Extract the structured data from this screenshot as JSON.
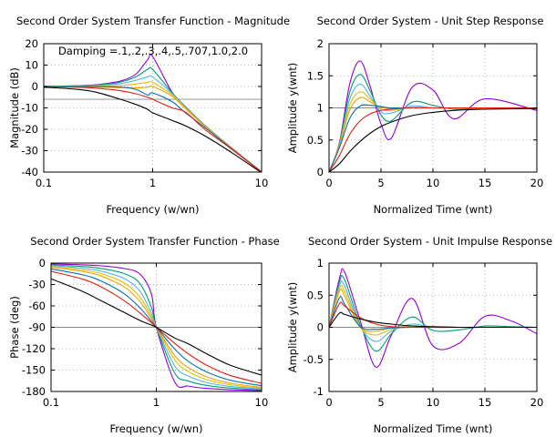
{
  "chart_data": [
    {
      "type": "line",
      "title": "Second Order System Transfer Function - Magnitude",
      "xlabel": "Frequency (w/wn)",
      "ylabel": "Magnitude (dB)",
      "annotation": "Damping =.1,.2,.3,.4,.5,.707,1.0,2.0",
      "x_scale": "log",
      "xlim": [
        0.1,
        10
      ],
      "ylim": [
        -40,
        20
      ],
      "x_ticks": [
        0.1,
        1,
        10
      ],
      "x_tick_labels": [
        "0.1",
        "1",
        "10"
      ],
      "y_ticks": [
        -40,
        -30,
        -20,
        -10,
        0,
        10,
        20
      ],
      "y_tick_labels": [
        "-40",
        "-30",
        "-20",
        "-10",
        "0",
        "10",
        "20"
      ],
      "grid": true,
      "reference_line": -6,
      "damping": [
        0.1,
        0.2,
        0.3,
        0.4,
        0.5,
        0.707,
        1.0,
        2.0
      ],
      "x": [
        0.1,
        0.2,
        0.3,
        0.5,
        0.7,
        0.9,
        1.0,
        1.5,
        2,
        3,
        5,
        10
      ],
      "series": [
        {
          "values": [
            0.09,
            0.35,
            0.82,
            2.46,
            5.74,
            12.5,
            13.98,
            -2.47,
            -9.4,
            -18.05,
            -27.58,
            -39.91
          ]
        },
        {
          "values": [
            0.07,
            0.3,
            0.67,
            2.02,
            4.51,
            8.05,
            7.96,
            -2.75,
            -9.5,
            -18.1,
            -27.6,
            -39.92
          ]
        },
        {
          "values": [
            0.05,
            0.21,
            0.44,
            1.34,
            2.88,
            4.51,
            4.44,
            -3.2,
            -9.7,
            -18.2,
            -27.6,
            -39.93
          ]
        },
        {
          "values": [
            0.02,
            0.08,
            0.16,
            0.53,
            1.15,
            1.95,
            1.94,
            -3.8,
            -10.0,
            -18.3,
            -27.7,
            -39.94
          ]
        },
        {
          "values": [
            -0.01,
            -0.09,
            -0.2,
            -0.5,
            -0.63,
            -0.34,
            0,
            -4.5,
            -10.4,
            -18.5,
            -27.8,
            -39.95
          ]
        },
        {
          "values": [
            -0.0,
            -0.01,
            -0.03,
            -0.26,
            -1.34,
            -4.0,
            -3.01,
            -7.0,
            -12.3,
            -19.1,
            -28.0,
            -40.0
          ]
        },
        {
          "values": [
            -0.09,
            -0.34,
            -0.75,
            -1.94,
            -3.41,
            -5.07,
            -6.02,
            -9.95,
            -12.0,
            -20.0,
            -28.3,
            -40.04
          ]
        },
        {
          "values": [
            -0.33,
            -1.3,
            -2.65,
            -5.9,
            -8.4,
            -10.7,
            -12.3,
            -15.8,
            -18.4,
            -23.0,
            -30.0,
            -40.3
          ]
        }
      ]
    },
    {
      "type": "line",
      "title": "Second Order System - Unit Step Response",
      "xlabel": "Normalized Time (wnt)",
      "ylabel": "Amplitude y(wnt)",
      "xlim": [
        0,
        20
      ],
      "ylim": [
        0,
        2
      ],
      "x_ticks": [
        0,
        5,
        10,
        15,
        20
      ],
      "x_tick_labels": [
        "0",
        "5",
        "10",
        "15",
        "20"
      ],
      "y_ticks": [
        0,
        0.5,
        1,
        1.5,
        2
      ],
      "y_tick_labels": [
        "0",
        "0.5",
        "1",
        "1.5",
        "2"
      ],
      "grid": true,
      "reference_line": 1,
      "damping": [
        0.1,
        0.2,
        0.3,
        0.4,
        0.5,
        0.707,
        1.0,
        2.0
      ],
      "x": [
        0,
        1,
        2,
        3,
        4,
        5,
        6,
        8,
        10,
        12,
        15,
        20
      ],
      "series": [
        {
          "values": [
            0,
            0.46,
            1.38,
            1.73,
            1.31,
            0.75,
            0.53,
            1.32,
            1.28,
            0.83,
            1.14,
            0.96
          ]
        },
        {
          "values": [
            0,
            0.44,
            1.25,
            1.52,
            1.25,
            0.89,
            0.8,
            1.09,
            1.04,
            0.98,
            1.0,
            1.0
          ]
        },
        {
          "values": [
            0,
            0.43,
            1.14,
            1.37,
            1.17,
            0.94,
            0.92,
            1.03,
            1.0,
            1.0,
            1.0,
            1.0
          ]
        },
        {
          "values": [
            0,
            0.42,
            1.05,
            1.25,
            1.13,
            0.98,
            0.96,
            1.01,
            1.0,
            1.0,
            1.0,
            1.0
          ]
        },
        {
          "values": [
            0,
            0.41,
            0.97,
            1.16,
            1.09,
            1.01,
            0.99,
            1.0,
            1.0,
            1.0,
            1.0,
            1.0
          ]
        },
        {
          "values": [
            0,
            0.38,
            0.84,
            1.03,
            1.04,
            1.02,
            1.0,
            1.0,
            1.0,
            1.0,
            1.0,
            1.0
          ]
        },
        {
          "values": [
            0,
            0.26,
            0.59,
            0.8,
            0.91,
            0.96,
            0.98,
            1.0,
            1.0,
            1.0,
            1.0,
            1.0
          ]
        },
        {
          "values": [
            0,
            0.13,
            0.32,
            0.48,
            0.61,
            0.71,
            0.78,
            0.88,
            0.93,
            0.96,
            0.98,
            0.99
          ]
        }
      ]
    },
    {
      "type": "line",
      "title": "Second Order System Transfer Function - Phase",
      "xlabel": "Frequency (w/wn)",
      "ylabel": "Phase (deg)",
      "x_scale": "log",
      "xlim": [
        0.1,
        10
      ],
      "ylim": [
        -180,
        0
      ],
      "x_ticks": [
        0.1,
        1,
        10
      ],
      "x_tick_labels": [
        "0.1",
        "1",
        "10"
      ],
      "y_ticks": [
        -180,
        -150,
        -120,
        -90,
        -60,
        -30,
        0
      ],
      "y_tick_labels": [
        "-180",
        "-150",
        "-120",
        "-90",
        "-60",
        "-30",
        "0"
      ],
      "grid": true,
      "reference_line": -90,
      "damping": [
        0.1,
        0.2,
        0.3,
        0.4,
        0.5,
        0.707,
        1.0,
        2.0
      ],
      "x": [
        0.1,
        0.2,
        0.3,
        0.5,
        0.7,
        0.9,
        1.0,
        1.5,
        2,
        3,
        5,
        10
      ],
      "series": [
        {
          "values": [
            -1.2,
            -2.4,
            -3.8,
            -7.6,
            -15.4,
            -43.5,
            -90,
            -166.9,
            -172.4,
            -175.7,
            -177.6,
            -178.8
          ]
        },
        {
          "values": [
            -2.3,
            -4.8,
            -7.5,
            -14.9,
            -28.8,
            -62.2,
            -90,
            -154.4,
            -165.1,
            -171.5,
            -175.2,
            -177.7
          ]
        },
        {
          "values": [
            -3.5,
            -7.1,
            -11.2,
            -21.8,
            -39.5,
            -70.9,
            -90,
            -144.2,
            -158.2,
            -167.3,
            -172.9,
            -176.5
          ]
        },
        {
          "values": [
            -4.6,
            -9.5,
            -14.8,
            -28.1,
            -47.7,
            -75.4,
            -90,
            -135.8,
            -151.9,
            -163.3,
            -170.6,
            -175.4
          ]
        },
        {
          "values": [
            -5.8,
            -11.8,
            -18.3,
            -33.7,
            -53.9,
            -78.1,
            -90,
            -129.8,
            -146.3,
            -159.4,
            -168.2,
            -174.2
          ]
        },
        {
          "values": [
            -8.1,
            -16.5,
            -25.1,
            -43.3,
            -62.9,
            -81.6,
            -90,
            -120.6,
            -137.5,
            -152.5,
            -164.1,
            -172.0
          ]
        },
        {
          "values": [
            -11.4,
            -22.6,
            -33.4,
            -53.1,
            -70.0,
            -83.8,
            -90,
            -112.6,
            -126.9,
            -143.1,
            -157.4,
            -168.6
          ]
        },
        {
          "values": [
            -22.0,
            -39.8,
            -52.9,
            -69.4,
            -80.4,
            -87.0,
            -90,
            -105.0,
            -113.0,
            -127.0,
            -143.0,
            -157.0
          ]
        }
      ]
    },
    {
      "type": "line",
      "title": "Second Order System - Unit Impulse Response",
      "xlabel": "Normalized Time (wnt)",
      "ylabel": "Amplitude y(wnt)",
      "xlim": [
        0,
        20
      ],
      "ylim": [
        -1,
        1
      ],
      "x_ticks": [
        0,
        5,
        10,
        15,
        20
      ],
      "x_tick_labels": [
        "0",
        "5",
        "10",
        "15",
        "20"
      ],
      "y_ticks": [
        -1,
        -0.5,
        0,
        0.5,
        1
      ],
      "y_tick_labels": [
        "-1",
        "-0.5",
        "0",
        "0.5",
        "1"
      ],
      "grid": true,
      "reference_line": 0,
      "damping": [
        0.1,
        0.2,
        0.3,
        0.4,
        0.5,
        0.707,
        1.0,
        2.0
      ],
      "x": [
        0,
        1,
        1.5,
        3,
        4.5,
        6,
        8,
        10,
        12.5,
        15,
        17.5,
        20
      ],
      "series": [
        {
          "values": [
            0,
            0.76,
            0.86,
            0.1,
            -0.62,
            -0.12,
            0.45,
            -0.29,
            -0.25,
            0.17,
            0.1,
            -0.1
          ]
        },
        {
          "values": [
            0,
            0.7,
            0.74,
            0.04,
            -0.37,
            -0.1,
            0.16,
            -0.05,
            -0.04,
            0.02,
            0.01,
            0
          ]
        },
        {
          "values": [
            0,
            0.65,
            0.64,
            0.01,
            -0.22,
            -0.06,
            0.05,
            0,
            0,
            0,
            0,
            0
          ]
        },
        {
          "values": [
            0,
            0.6,
            0.56,
            0.0,
            -0.12,
            -0.03,
            0.02,
            0,
            0,
            0,
            0,
            0
          ]
        },
        {
          "values": [
            0,
            0.56,
            0.49,
            0.0,
            -0.06,
            -0.01,
            0,
            0,
            0,
            0,
            0,
            0
          ]
        },
        {
          "values": [
            0,
            0.46,
            0.36,
            0.01,
            -0.03,
            -0.01,
            0,
            0,
            0,
            0,
            0,
            0
          ]
        },
        {
          "values": [
            0,
            0.37,
            0.33,
            0.15,
            0.05,
            0.01,
            0,
            0,
            0,
            0,
            0,
            0
          ]
        },
        {
          "values": [
            0,
            0.22,
            0.2,
            0.13,
            0.08,
            0.05,
            0.02,
            0.01,
            0,
            0,
            0,
            0
          ]
        }
      ]
    }
  ],
  "series_colors": [
    "#9400d3",
    "#009e73",
    "#56b4e9",
    "#e6c000",
    "#f0a000",
    "#0072b2",
    "#e51e10",
    "#000000"
  ],
  "reference_color": "#8a8a8a"
}
